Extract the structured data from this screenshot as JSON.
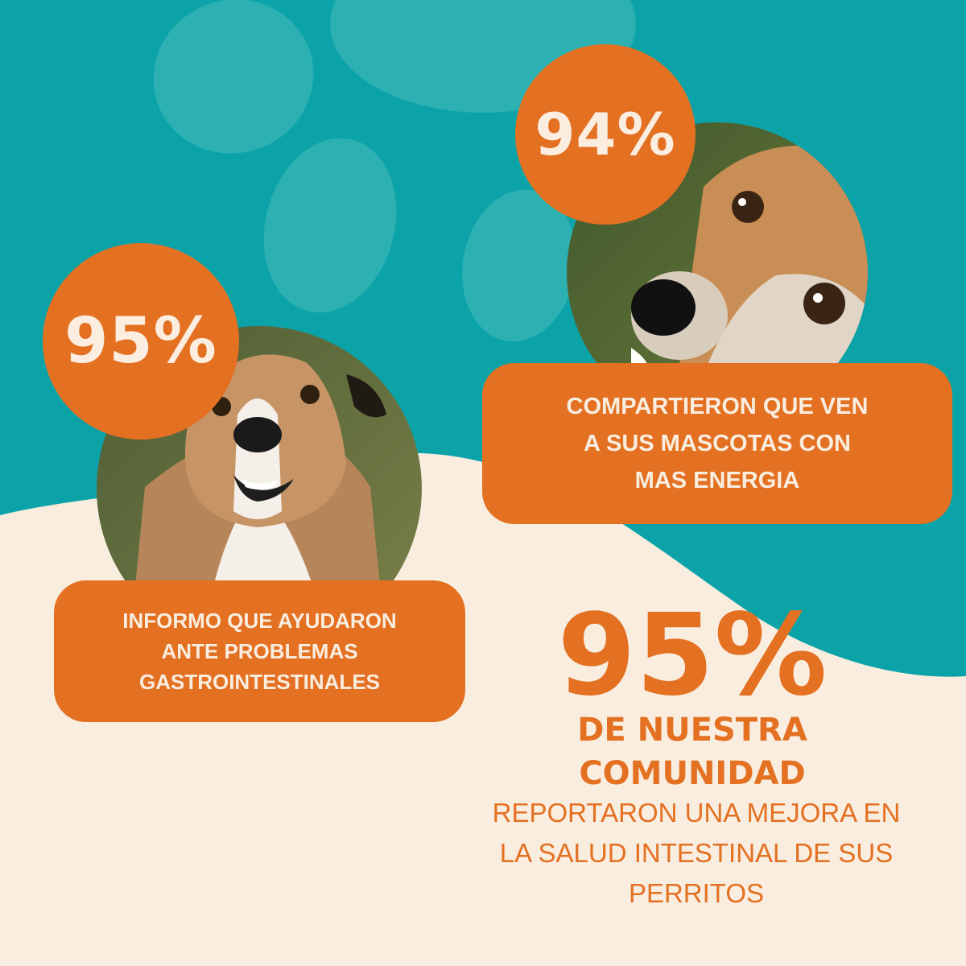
{
  "colors": {
    "teal": "#0ba3a8",
    "teal_light": "#2cb0b2",
    "cream": "#f8eddf",
    "orange": "#e47022",
    "text_light": "#fbeee0"
  },
  "decorations": {
    "paw_print": "paw-print-background",
    "dog_photo_left": "dog-photo-happy",
    "dog_photo_right": "dog-photo-closeup"
  },
  "stats": [
    {
      "percent": "94%",
      "description": "COMPARTIERON QUE VEN A SUS MASCOTAS CON MAS ENERGIA"
    },
    {
      "percent": "95%",
      "description": "INFORMO QUE AYUDARON ANTE PROBLEMAS GASTROINTESTINALES"
    }
  ],
  "summary": {
    "percent": "95%",
    "subtitle_line1": "DE NUESTRA",
    "subtitle_line2": "COMUNIDAD",
    "report": "REPORTARON UNA MEJORA EN LA SALUD INTESTINAL DE SUS PERRITOS"
  }
}
